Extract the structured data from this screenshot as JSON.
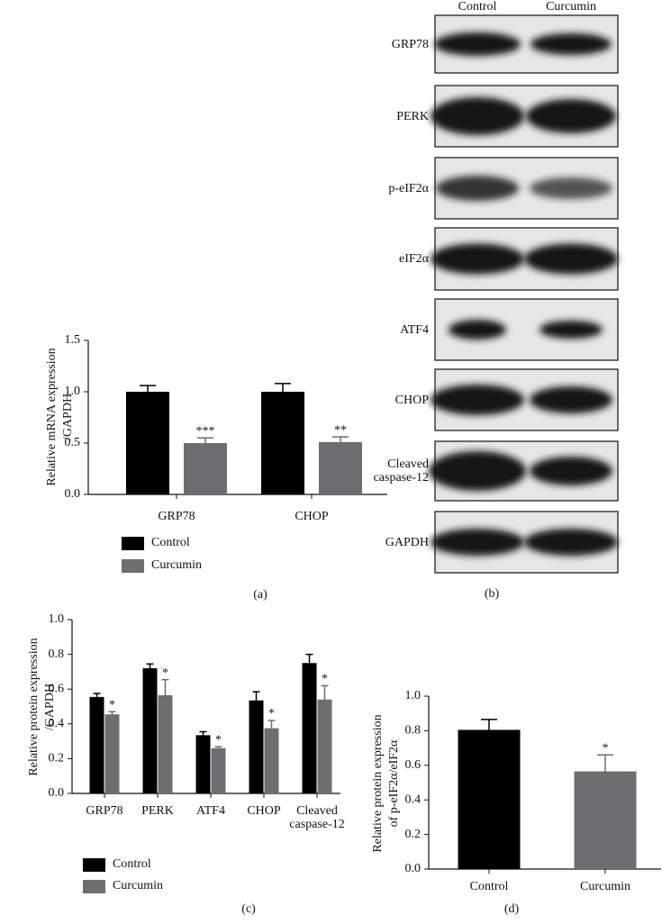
{
  "chart_data": [
    {
      "type": "bar",
      "panel_label": "(a)",
      "ylabel": [
        "Relative mRNA expression",
        "/GAPDH"
      ],
      "categories": [
        "GRP78",
        "CHOP"
      ],
      "series": [
        {
          "name": "Control",
          "color": "#000000",
          "values": [
            1.0,
            1.0
          ],
          "errors": [
            0.06,
            0.08
          ]
        },
        {
          "name": "Curcumin",
          "color": "#6d6e71",
          "values": [
            0.5,
            0.51
          ],
          "errors": [
            0.05,
            0.05
          ],
          "annotations": [
            "***",
            "**"
          ]
        }
      ],
      "ylim": [
        0,
        1.5
      ],
      "yticks": [
        {
          "value": 0,
          "label": "0.0"
        },
        0.5,
        {
          "value": 1,
          "label": "1.0"
        },
        1.5
      ],
      "legend": "bottom-left"
    },
    {
      "type": "bar",
      "panel_label": "(c)",
      "ylabel": [
        "Relative protein expression",
        "/GAPDH"
      ],
      "categories": [
        "GRP78",
        "PERK",
        "ATF4",
        "CHOP",
        "Cleaved caspase-12"
      ],
      "series": [
        {
          "name": "Control",
          "color": "#000000",
          "values": [
            0.555,
            0.72,
            0.335,
            0.535,
            0.75
          ],
          "errors": [
            0.02,
            0.025,
            0.02,
            0.05,
            0.05
          ]
        },
        {
          "name": "Curcumin",
          "color": "#6d6e71",
          "values": [
            0.455,
            0.565,
            0.26,
            0.375,
            0.54
          ],
          "errors": [
            0.015,
            0.09,
            0.008,
            0.045,
            0.08
          ],
          "annotations": [
            "*",
            "*",
            "*",
            "*",
            "*"
          ]
        }
      ],
      "ylim": [
        0,
        1.0
      ],
      "yticks": [
        {
          "value": 0,
          "label": "0.0"
        },
        0.2,
        0.4,
        0.6,
        0.8,
        {
          "value": 1,
          "label": "1.0"
        }
      ],
      "legend": "bottom-left"
    },
    {
      "type": "bar",
      "panel_label": "(d)",
      "ylabel": [
        "Relative protein expression",
        "of p-eIF2α/eIF2α"
      ],
      "categories": [
        "Control",
        "Curcumin"
      ],
      "series": [
        {
          "colors": [
            "#000000",
            "#6d6e71"
          ],
          "values": [
            0.805,
            0.565
          ],
          "errors": [
            0.06,
            0.095
          ],
          "annotations": [
            null,
            "*"
          ]
        }
      ],
      "ylim": [
        0,
        1.0
      ],
      "yticks": [
        {
          "value": 0,
          "label": "0.0"
        },
        0.2,
        0.4,
        0.6,
        0.8,
        {
          "value": 1,
          "label": "1.0"
        }
      ],
      "legend": false
    }
  ],
  "blot": {
    "panel_label": "(b)",
    "columns": [
      "Control",
      "Curcumin"
    ],
    "rows": [
      "GRP78",
      "PERK",
      "p-eIF2α",
      "eIF2α",
      "ATF4",
      "CHOP",
      "Cleaved caspase-12",
      "GAPDH"
    ]
  }
}
